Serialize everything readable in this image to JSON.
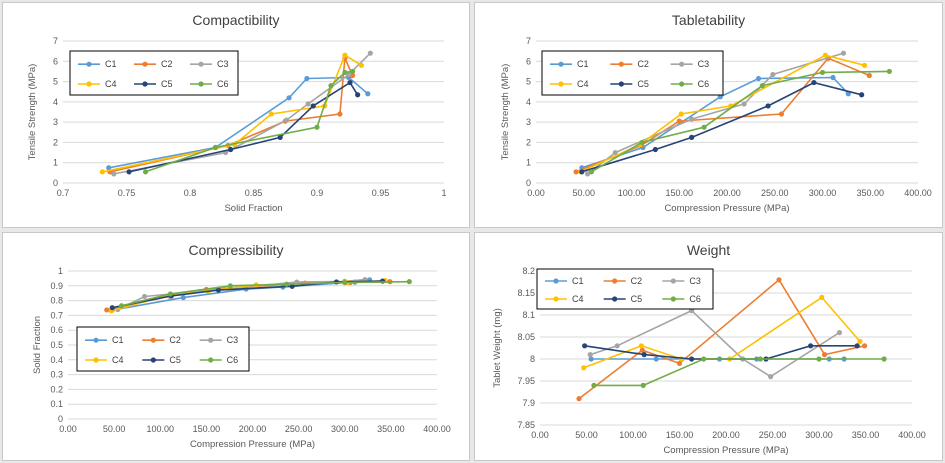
{
  "chart_data": [
    {
      "type": "line",
      "title": "Compactibility",
      "xlabel": "Solid Fraction",
      "ylabel": "Tensile Strength (MPa)",
      "xlim": [
        0.7,
        1
      ],
      "ylim": [
        0,
        7
      ],
      "xticks": [
        "0.7",
        "0.75",
        "0.8",
        "0.85",
        "0.9",
        "0.95",
        "1"
      ],
      "yticks": [
        "0",
        "1",
        "2",
        "3",
        "4",
        "5",
        "6",
        "7"
      ],
      "legend": "top-left",
      "series": [
        {
          "name": "C1",
          "color": "#5b9bd5",
          "points": [
            [
              0.736,
              0.75
            ],
            [
              0.82,
              1.75
            ],
            [
              0.878,
              4.2
            ],
            [
              0.892,
              5.15
            ],
            [
              0.925,
              5.2
            ],
            [
              0.94,
              4.4
            ]
          ]
        },
        {
          "name": "C2",
          "color": "#ed7d31",
          "points": [
            [
              0.737,
              0.55
            ],
            [
              0.83,
              1.85
            ],
            [
              0.875,
              3.05
            ],
            [
              0.918,
              3.4
            ],
            [
              0.922,
              6.15
            ],
            [
              0.928,
              5.3
            ]
          ]
        },
        {
          "name": "C3",
          "color": "#a5a5a5",
          "points": [
            [
              0.74,
              0.45
            ],
            [
              0.828,
              1.5
            ],
            [
              0.876,
              3.1
            ],
            [
              0.893,
              3.9
            ],
            [
              0.925,
              5.35
            ],
            [
              0.942,
              6.4
            ]
          ]
        },
        {
          "name": "C4",
          "color": "#ffc000",
          "points": [
            [
              0.731,
              0.55
            ],
            [
              0.835,
              1.9
            ],
            [
              0.864,
              3.4
            ],
            [
              0.906,
              3.8
            ],
            [
              0.922,
              6.3
            ],
            [
              0.935,
              5.8
            ]
          ]
        },
        {
          "name": "C5",
          "color": "#264478",
          "points": [
            [
              0.752,
              0.55
            ],
            [
              0.832,
              1.65
            ],
            [
              0.871,
              2.25
            ],
            [
              0.897,
              3.8
            ],
            [
              0.926,
              4.95
            ],
            [
              0.932,
              4.35
            ]
          ]
        },
        {
          "name": "C6",
          "color": "#70ad47",
          "points": [
            [
              0.765,
              0.55
            ],
            [
              0.82,
              1.75
            ],
            [
              0.9,
              2.75
            ],
            [
              0.911,
              4.8
            ],
            [
              0.922,
              5.45
            ],
            [
              0.928,
              5.5
            ]
          ]
        }
      ]
    },
    {
      "type": "line",
      "title": "Tabletability",
      "xlabel": "Compression Pressure (MPa)",
      "ylabel": "Tensile Strength (MPa)",
      "xlim": [
        0,
        400
      ],
      "ylim": [
        0,
        7
      ],
      "xticks": [
        "0.00",
        "50.00",
        "100.00",
        "150.00",
        "200.00",
        "250.00",
        "300.00",
        "350.00",
        "400.00"
      ],
      "yticks": [
        "0",
        "1",
        "2",
        "3",
        "4",
        "5",
        "6",
        "7"
      ],
      "legend": "top-left",
      "series": [
        {
          "name": "C1",
          "color": "#5b9bd5",
          "points": [
            [
              48,
              0.75
            ],
            [
              112,
              1.75
            ],
            [
              193,
              4.25
            ],
            [
              233,
              5.15
            ],
            [
              311,
              5.2
            ],
            [
              327,
              4.4
            ]
          ]
        },
        {
          "name": "C2",
          "color": "#ed7d31",
          "points": [
            [
              42,
              0.55
            ],
            [
              110,
              1.85
            ],
            [
              150,
              3.05
            ],
            [
              257,
              3.4
            ],
            [
              306,
              6.15
            ],
            [
              349,
              5.3
            ]
          ]
        },
        {
          "name": "C3",
          "color": "#a5a5a5",
          "points": [
            [
              54,
              0.45
            ],
            [
              83,
              1.5
            ],
            [
              163,
              3.15
            ],
            [
              218,
              3.9
            ],
            [
              248,
              5.35
            ],
            [
              322,
              6.4
            ]
          ]
        },
        {
          "name": "C4",
          "color": "#ffc000",
          "points": [
            [
              47,
              0.55
            ],
            [
              109,
              1.9
            ],
            [
              152,
              3.4
            ],
            [
              204,
              3.8
            ],
            [
              303,
              6.3
            ],
            [
              344,
              5.8
            ]
          ]
        },
        {
          "name": "C5",
          "color": "#264478",
          "points": [
            [
              48,
              0.55
            ],
            [
              125,
              1.65
            ],
            [
              163,
              2.25
            ],
            [
              243,
              3.8
            ],
            [
              291,
              4.95
            ],
            [
              341,
              4.35
            ]
          ]
        },
        {
          "name": "C6",
          "color": "#70ad47",
          "points": [
            [
              58,
              0.55
            ],
            [
              111,
              2.0
            ],
            [
              176,
              2.75
            ],
            [
              237,
              4.8
            ],
            [
              300,
              5.45
            ],
            [
              370,
              5.5
            ]
          ]
        }
      ]
    },
    {
      "type": "line",
      "title": "Compressibility",
      "xlabel": "Compression Pressure (MPa)",
      "ylabel": "Solid Fraction",
      "xlim": [
        0,
        400
      ],
      "ylim": [
        0,
        1
      ],
      "xticks": [
        "0.00",
        "50.00",
        "100.00",
        "150.00",
        "200.00",
        "250.00",
        "300.00",
        "350.00",
        "400.00"
      ],
      "yticks": [
        "0",
        "0.1",
        "0.2",
        "0.3",
        "0.4",
        "0.5",
        "0.6",
        "0.7",
        "0.8",
        "0.9",
        "1"
      ],
      "legend": "bottom-left",
      "series": [
        {
          "name": "C1",
          "color": "#5b9bd5",
          "points": [
            [
              48,
              0.736
            ],
            [
              125,
              0.82
            ],
            [
              193,
              0.878
            ],
            [
              233,
              0.892
            ],
            [
              311,
              0.925
            ],
            [
              327,
              0.94
            ]
          ]
        },
        {
          "name": "C2",
          "color": "#ed7d31",
          "points": [
            [
              42,
              0.737
            ],
            [
              110,
              0.83
            ],
            [
              150,
              0.875
            ],
            [
              257,
              0.918
            ],
            [
              306,
              0.922
            ],
            [
              349,
              0.928
            ]
          ]
        },
        {
          "name": "C3",
          "color": "#a5a5a5",
          "points": [
            [
              54,
              0.74
            ],
            [
              83,
              0.828
            ],
            [
              163,
              0.876
            ],
            [
              248,
              0.925
            ],
            [
              300,
              0.93
            ],
            [
              322,
              0.942
            ]
          ]
        },
        {
          "name": "C4",
          "color": "#ffc000",
          "points": [
            [
              47,
              0.731
            ],
            [
              109,
              0.835
            ],
            [
              152,
              0.864
            ],
            [
              204,
              0.906
            ],
            [
              303,
              0.922
            ],
            [
              344,
              0.935
            ]
          ]
        },
        {
          "name": "C5",
          "color": "#264478",
          "points": [
            [
              48,
              0.752
            ],
            [
              112,
              0.832
            ],
            [
              163,
              0.871
            ],
            [
              243,
              0.897
            ],
            [
              291,
              0.926
            ],
            [
              341,
              0.932
            ]
          ]
        },
        {
          "name": "C6",
          "color": "#70ad47",
          "points": [
            [
              58,
              0.765
            ],
            [
              111,
              0.845
            ],
            [
              176,
              0.9
            ],
            [
              237,
              0.911
            ],
            [
              300,
              0.922
            ],
            [
              370,
              0.928
            ]
          ]
        }
      ]
    },
    {
      "type": "line",
      "title": "Weight",
      "xlabel": "Compression Pressure (MPa)",
      "ylabel": "Tablet Weight (mg)",
      "xlim": [
        0,
        400
      ],
      "ylim": [
        7.85,
        8.2
      ],
      "xticks": [
        "0.00",
        "50.00",
        "100.00",
        "150.00",
        "200.00",
        "250.00",
        "300.00",
        "350.00",
        "400.00"
      ],
      "yticks": [
        "7.85",
        "7.9",
        "7.95",
        "8",
        "8.05",
        "8.1",
        "8.15",
        "8.2"
      ],
      "legend": "top-left",
      "series": [
        {
          "name": "C1",
          "color": "#5b9bd5",
          "points": [
            [
              55,
              8.0
            ],
            [
              125,
              8.0
            ],
            [
              193,
              8.0
            ],
            [
              233,
              8.0
            ],
            [
              311,
              8.0
            ],
            [
              327,
              8.0
            ]
          ]
        },
        {
          "name": "C2",
          "color": "#ed7d31",
          "points": [
            [
              42,
              7.91
            ],
            [
              110,
              8.02
            ],
            [
              150,
              7.99
            ],
            [
              257,
              8.18
            ],
            [
              306,
              8.01
            ],
            [
              349,
              8.03
            ]
          ]
        },
        {
          "name": "C3",
          "color": "#a5a5a5",
          "points": [
            [
              54,
              8.01
            ],
            [
              83,
              8.03
            ],
            [
              163,
              8.11
            ],
            [
              218,
              8.0
            ],
            [
              248,
              7.96
            ],
            [
              322,
              8.06
            ]
          ]
        },
        {
          "name": "C4",
          "color": "#ffc000",
          "points": [
            [
              47,
              7.98
            ],
            [
              109,
              8.03
            ],
            [
              152,
              8.0
            ],
            [
              204,
              8.0
            ],
            [
              303,
              8.14
            ],
            [
              344,
              8.04
            ]
          ]
        },
        {
          "name": "C5",
          "color": "#264478",
          "points": [
            [
              48,
              8.03
            ],
            [
              112,
              8.01
            ],
            [
              163,
              8.0
            ],
            [
              243,
              8.0
            ],
            [
              291,
              8.03
            ],
            [
              341,
              8.03
            ]
          ]
        },
        {
          "name": "C6",
          "color": "#70ad47",
          "points": [
            [
              58,
              7.94
            ],
            [
              111,
              7.94
            ],
            [
              176,
              8.0
            ],
            [
              237,
              8.0
            ],
            [
              300,
              8.0
            ],
            [
              370,
              8.0
            ]
          ]
        }
      ]
    }
  ]
}
